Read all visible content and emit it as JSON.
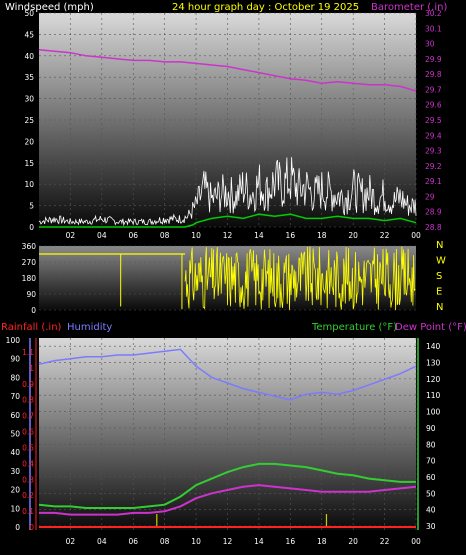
{
  "title": "24 hour graph day : October 19 2025",
  "colors": {
    "wind": "#FFFFFF",
    "gust": "#FFFFFF",
    "avg": "#00CC00",
    "baro": "#CC33CC",
    "dir": "#FFFF00",
    "rain": "#FF2222",
    "humidity": "#7B7BFF",
    "temp": "#33CC33",
    "dew": "#CC33CC",
    "rain_bar": "#CCCC00",
    "title": "#FFFF00"
  },
  "chart_data": [
    {
      "type": "line",
      "name": "wind",
      "left_label": "Windspeed (mph)",
      "right_label": "Barometer (.in)",
      "x_ticks": [
        "02",
        "04",
        "06",
        "08",
        "10",
        "12",
        "14",
        "16",
        "18",
        "20",
        "22",
        "00"
      ],
      "ylim_left": [
        0,
        50
      ],
      "y_ticks_left": [
        0,
        5,
        10,
        15,
        20,
        25,
        30,
        35,
        40,
        45,
        50
      ],
      "ylim_right": [
        28.8,
        30.2
      ],
      "y_ticks_right": [
        "28.8",
        "28.9",
        "29",
        "29.1",
        "29.2",
        "29.3",
        "29.4",
        "29.5",
        "29.6",
        "29.7",
        "29.8",
        "29.9",
        "30",
        "30.1",
        "30.2"
      ],
      "baro_x": [
        0,
        1,
        2,
        3,
        4,
        5,
        6,
        7,
        8,
        9,
        10,
        11,
        12,
        13,
        14,
        15,
        16,
        17,
        18,
        19,
        20,
        21,
        22,
        23,
        24
      ],
      "baro_values": [
        29.96,
        29.95,
        29.94,
        29.92,
        29.91,
        29.9,
        29.89,
        29.89,
        29.88,
        29.88,
        29.87,
        29.86,
        29.85,
        29.83,
        29.81,
        29.79,
        29.77,
        29.76,
        29.74,
        29.75,
        29.74,
        29.73,
        29.73,
        29.72,
        29.69
      ],
      "wind_avg_x": [
        0,
        2,
        4,
        6,
        8,
        9.3,
        9.8,
        10,
        11,
        12,
        13,
        14,
        15,
        16,
        17,
        18,
        19,
        20,
        21,
        22,
        23,
        24
      ],
      "wind_avg_values": [
        0,
        0,
        0,
        0,
        0,
        0,
        0.5,
        1,
        2,
        2.5,
        2,
        3,
        2.5,
        3,
        2,
        2,
        2.5,
        2,
        2,
        1.5,
        2,
        1
      ],
      "wind_gust_envelope_x": [
        0,
        1,
        2,
        3,
        4,
        5,
        6,
        7,
        8,
        9,
        9.5,
        10,
        10.5,
        11,
        11.5,
        12,
        12.5,
        13,
        13.5,
        14,
        14.5,
        15,
        15.5,
        16,
        16.5,
        17,
        17.5,
        18,
        18.5,
        19,
        19.5,
        20,
        20.5,
        21,
        21.5,
        22,
        22.5,
        23,
        23.5,
        24
      ],
      "wind_gust_envelope_values": [
        2,
        3,
        2,
        2,
        3,
        2,
        2,
        2,
        3,
        3,
        4,
        8,
        14,
        10,
        12,
        13,
        11,
        15,
        12,
        16,
        13,
        17,
        15,
        18,
        14,
        15,
        12,
        14,
        13,
        12,
        11,
        14,
        12,
        13,
        10,
        12,
        9,
        11,
        8,
        8
      ]
    },
    {
      "type": "scatter",
      "name": "wind_direction",
      "ylim": [
        0,
        360
      ],
      "y_ticks": [
        0,
        90,
        180,
        270,
        360
      ],
      "right_labels": [
        "N",
        "W",
        "S",
        "E",
        "N"
      ],
      "calm_until_hour": 9.3,
      "calm_value": 315,
      "calm_dips": [
        {
          "hour": 5.2,
          "value": 20
        },
        {
          "hour": 9.1,
          "value": 5
        }
      ]
    },
    {
      "type": "line",
      "name": "temperature_humidity_rain",
      "left_label_rain": "Rainfall (.in)",
      "left_label_hum": "Humidity",
      "right_label_temp": "Temperature (°F)",
      "right_label_dew": "Dew Point (°F)",
      "x_ticks": [
        "02",
        "04",
        "06",
        "08",
        "10",
        "12",
        "14",
        "16",
        "18",
        "20",
        "22",
        "00"
      ],
      "humidity_ticks": [
        0,
        10,
        20,
        30,
        40,
        50,
        60,
        70,
        80,
        90,
        100
      ],
      "rain_ticks": [
        "0",
        "0.1",
        "0.2",
        "0.3",
        "0.4",
        "0.5",
        "0.6",
        "0.7",
        "0.8",
        "0.9",
        "1",
        "1.1"
      ],
      "temp_ticks": [
        30,
        40,
        50,
        60,
        70,
        80,
        90,
        100,
        110,
        120,
        130,
        140
      ],
      "temp_lim": [
        30,
        145
      ],
      "hum_lim": [
        0,
        100
      ],
      "x": [
        0,
        1,
        2,
        3,
        4,
        5,
        6,
        7,
        8,
        9,
        10,
        11,
        12,
        13,
        14,
        15,
        16,
        17,
        18,
        19,
        20,
        21,
        22,
        23,
        24
      ],
      "humidity": [
        87,
        89,
        90,
        91,
        91,
        92,
        92,
        93,
        94,
        95,
        86,
        80,
        77,
        74,
        72,
        70,
        68,
        71,
        72,
        71,
        73,
        76,
        79,
        82,
        86
      ],
      "temperature": [
        43,
        42,
        42,
        41,
        41,
        41,
        41,
        42,
        43,
        48,
        55,
        59,
        63,
        66,
        68,
        68,
        67,
        66,
        64,
        62,
        61,
        59,
        58,
        57,
        57
      ],
      "dew_point": [
        38,
        38,
        37,
        37,
        37,
        37,
        38,
        38,
        39,
        42,
        47,
        50,
        52,
        54,
        55,
        54,
        53,
        52,
        51,
        51,
        51,
        51,
        52,
        53,
        54
      ],
      "rain_total": 0,
      "rain_bar_hours": [
        7.5,
        18.3
      ]
    }
  ]
}
